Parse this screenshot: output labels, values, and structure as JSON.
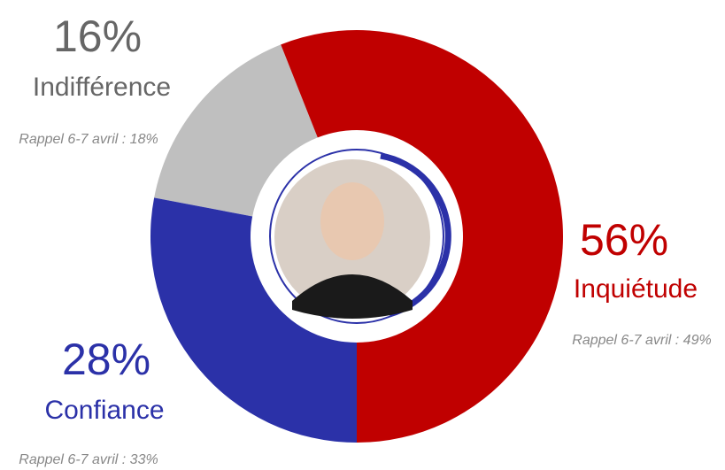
{
  "chart_data": {
    "type": "pie",
    "donut": true,
    "categories": [
      "Inquiétude",
      "Confiance",
      "Indifférence"
    ],
    "values": [
      56,
      28,
      16
    ],
    "value_labels": [
      "56%",
      "28%",
      "16%"
    ],
    "colors": [
      "#c00000",
      "#2b31a8",
      "#bfbfbf"
    ],
    "annotations": [
      "Rappel 6-7 avril : 49%",
      "Rappel 6-7 avril : 33%",
      "Rappel 6-7 avril : 18%"
    ]
  }
}
